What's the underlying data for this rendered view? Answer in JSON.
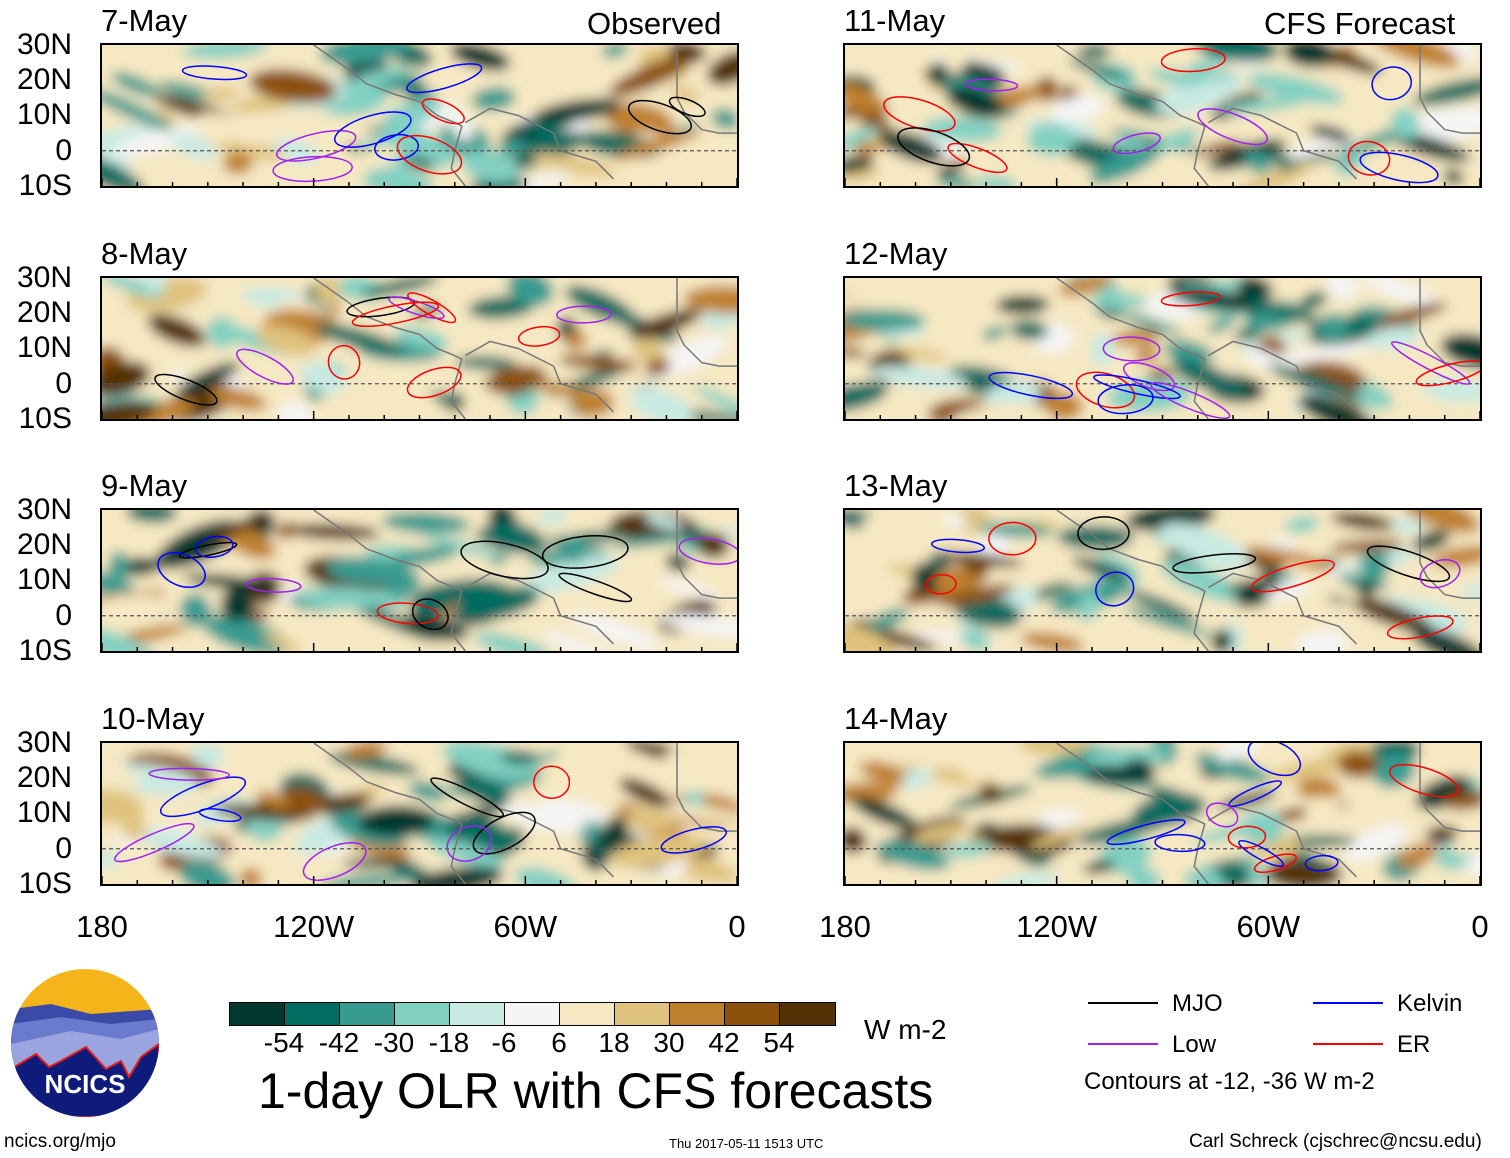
{
  "figure": {
    "title": "1-day OLR with CFS forecasts",
    "left_header": "Observed",
    "right_header": "CFS Forecast",
    "units": "W m-2",
    "contour_note": "Contours at -12, -36 W m-2",
    "site": "ncics.org/mjo",
    "timestamp": "Thu 2017-05-11 1513 UTC",
    "author": "Carl Schreck (cjschrec@ncsu.edu)",
    "logo_text": "NCICS"
  },
  "panels_left": [
    "7-May",
    "8-May",
    "9-May",
    "10-May"
  ],
  "panels_right": [
    "11-May",
    "12-May",
    "13-May",
    "14-May"
  ],
  "lat_labels": [
    "30N",
    "20N",
    "10N",
    "0",
    "10S"
  ],
  "lon_labels": [
    "180",
    "120W",
    "60W",
    "0"
  ],
  "colorbar": {
    "labels": [
      "-54",
      "-42",
      "-30",
      "-18",
      "-6",
      "6",
      "18",
      "30",
      "42",
      "54"
    ],
    "colors": [
      "#01392f",
      "#016c60",
      "#389b90",
      "#82d0c2",
      "#c7eae3",
      "#f5f5f5",
      "#f6e8c3",
      "#dfc27d",
      "#bf812d",
      "#8c510a",
      "#543005"
    ]
  },
  "legend": [
    {
      "label": "MJO",
      "color": "#000000"
    },
    {
      "label": "Kelvin",
      "color": "#0000ff"
    },
    {
      "label": "Low",
      "color": "#a020f0"
    },
    {
      "label": "ER",
      "color": "#ff0000"
    }
  ]
}
